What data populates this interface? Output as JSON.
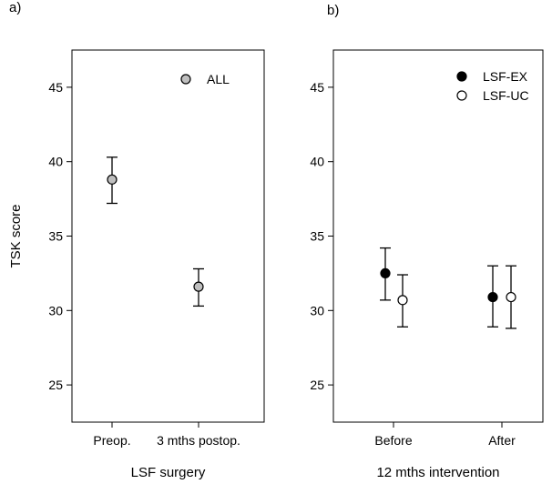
{
  "chart_data": [
    {
      "type": "scatter",
      "panel_label": "a)",
      "xlabel": "LSF surgery",
      "ylabel": "TSK score",
      "categories": [
        "Preop.",
        "3 mths postop."
      ],
      "ylim": [
        22.5,
        47.5
      ],
      "yticks": [
        25,
        30,
        35,
        40,
        45
      ],
      "grid": false,
      "legend_position": "top-right",
      "series": [
        {
          "name": "ALL",
          "fill": "#bfbfbf",
          "values": [
            38.8,
            31.6
          ],
          "err_low": [
            37.2,
            30.3
          ],
          "err_high": [
            40.3,
            32.8
          ]
        }
      ]
    },
    {
      "type": "scatter",
      "panel_label": "b)",
      "xlabel": "12 mths intervention",
      "ylabel": "",
      "categories": [
        "Before",
        "After"
      ],
      "ylim": [
        22.5,
        47.5
      ],
      "yticks": [
        25,
        30,
        35,
        40,
        45
      ],
      "grid": false,
      "legend_position": "top-right",
      "series": [
        {
          "name": "LSF-EX",
          "fill": "#000000",
          "values": [
            32.5,
            30.9
          ],
          "err_low": [
            30.7,
            28.9
          ],
          "err_high": [
            34.2,
            33.0
          ]
        },
        {
          "name": "LSF-UC",
          "fill": "#ffffff",
          "values": [
            30.7,
            30.9
          ],
          "err_low": [
            28.9,
            28.8
          ],
          "err_high": [
            32.4,
            33.0
          ]
        }
      ]
    }
  ]
}
